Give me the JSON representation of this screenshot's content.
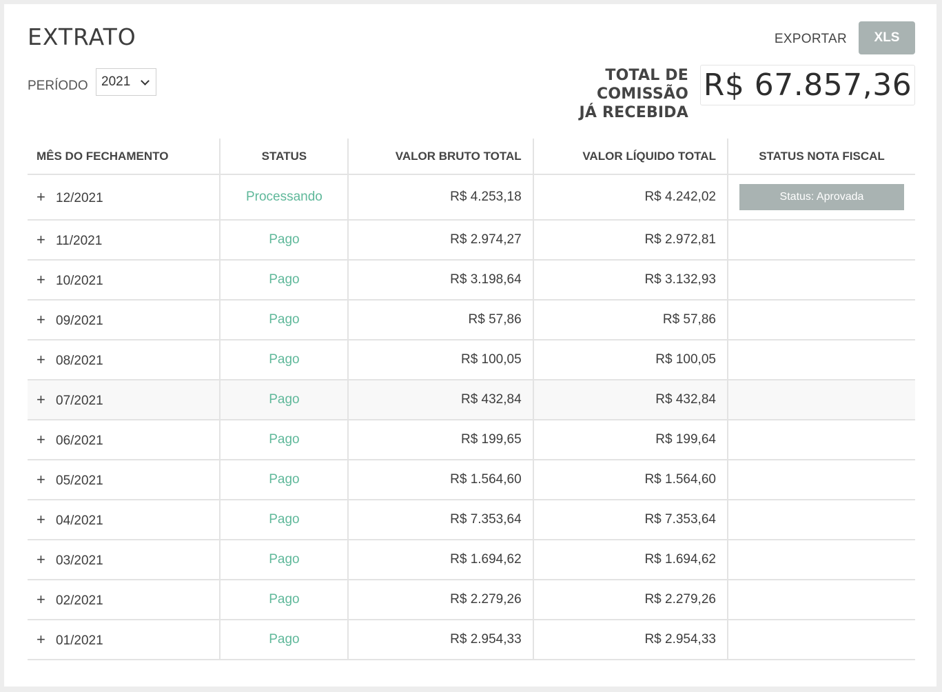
{
  "header": {
    "title": "EXTRATO",
    "period_label": "PERÍODO",
    "period_value": "2021",
    "export_label": "EXPORTAR",
    "xls_label": "XLS",
    "total_label_line1": "TOTAL DE COMISSÃO",
    "total_label_line2": "JÁ RECEBIDA",
    "total_value": "R$ 67.857,36"
  },
  "table": {
    "columns": [
      "MÊS DO FECHAMENTO",
      "STATUS",
      "VALOR BRUTO TOTAL",
      "VALOR LÍQUIDO TOTAL",
      "STATUS NOTA FISCAL"
    ],
    "rows": [
      {
        "month": "12/2021",
        "status": "Processando",
        "bruto": "R$ 4.253,18",
        "liquido": "R$ 4.242,02",
        "nf": "Status: Aprovada"
      },
      {
        "month": "11/2021",
        "status": "Pago",
        "bruto": "R$ 2.974,27",
        "liquido": "R$ 2.972,81",
        "nf": ""
      },
      {
        "month": "10/2021",
        "status": "Pago",
        "bruto": "R$ 3.198,64",
        "liquido": "R$ 3.132,93",
        "nf": ""
      },
      {
        "month": "09/2021",
        "status": "Pago",
        "bruto": "R$ 57,86",
        "liquido": "R$ 57,86",
        "nf": ""
      },
      {
        "month": "08/2021",
        "status": "Pago",
        "bruto": "R$ 100,05",
        "liquido": "R$ 100,05",
        "nf": ""
      },
      {
        "month": "07/2021",
        "status": "Pago",
        "bruto": "R$ 432,84",
        "liquido": "R$ 432,84",
        "nf": ""
      },
      {
        "month": "06/2021",
        "status": "Pago",
        "bruto": "R$ 199,65",
        "liquido": "R$ 199,64",
        "nf": ""
      },
      {
        "month": "05/2021",
        "status": "Pago",
        "bruto": "R$ 1.564,60",
        "liquido": "R$ 1.564,60",
        "nf": ""
      },
      {
        "month": "04/2021",
        "status": "Pago",
        "bruto": "R$ 7.353,64",
        "liquido": "R$ 7.353,64",
        "nf": ""
      },
      {
        "month": "03/2021",
        "status": "Pago",
        "bruto": "R$ 1.694,62",
        "liquido": "R$ 1.694,62",
        "nf": ""
      },
      {
        "month": "02/2021",
        "status": "Pago",
        "bruto": "R$ 2.279,26",
        "liquido": "R$ 2.279,26",
        "nf": ""
      },
      {
        "month": "01/2021",
        "status": "Pago",
        "bruto": "R$ 2.954,33",
        "liquido": "R$ 2.954,33",
        "nf": ""
      }
    ]
  },
  "colors": {
    "status_green": "#5fb89a",
    "button_gray": "#a9b3b2",
    "border": "#e3e3e3"
  }
}
